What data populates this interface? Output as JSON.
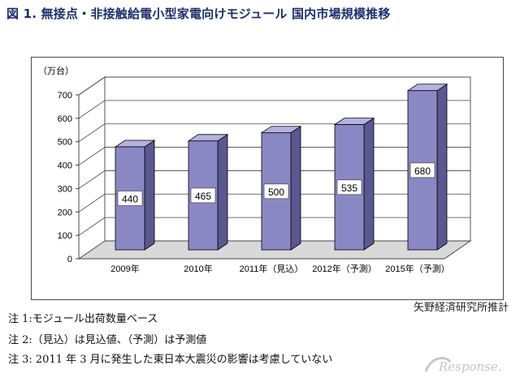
{
  "title": "図 1.  無接点・非接触給電小型家電向けモジュール 国内市場規模推移",
  "source": "矢野経済研究所推計",
  "notes": [
    "注 1:モジュール出荷数量ベース",
    "注 2:（見込）は見込値、（予測）は予測値",
    "注 3: 2011 年 3 月に発生した東日本大震災の影響は考慮していない"
  ],
  "watermark": {
    "text": "Response."
  },
  "colors": {
    "bar_front": "#8a88c4",
    "bar_side": "#5a5890",
    "bar_top": "#b4b2de",
    "title": "#1c2f6e"
  },
  "chart_data": {
    "type": "bar",
    "title": "",
    "xlabel": "",
    "ylabel": "（万台）",
    "ylim": [
      0,
      700
    ],
    "yticks": [
      0,
      100,
      200,
      300,
      400,
      500,
      600,
      700
    ],
    "grid": true,
    "categories": [
      "2009年",
      "2010年",
      "2011年（見込）",
      "2012年（予測）",
      "2015年（予測）"
    ],
    "values": [
      440,
      465,
      500,
      535,
      680
    ]
  }
}
